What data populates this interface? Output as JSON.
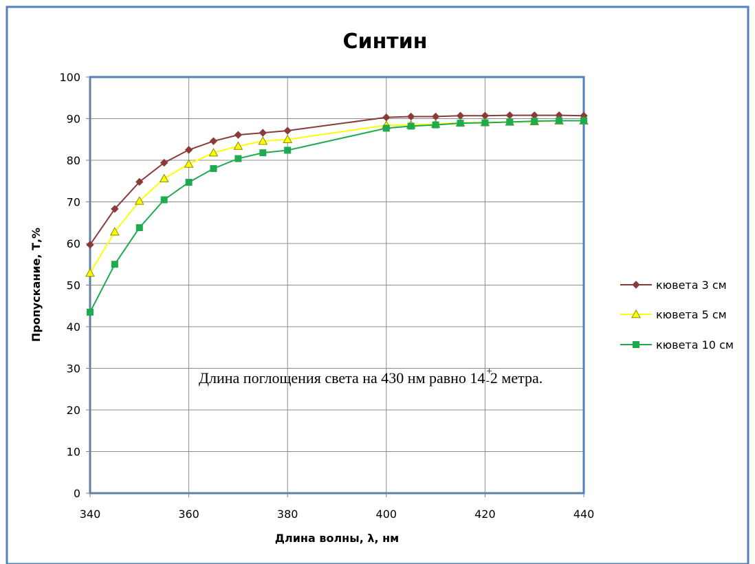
{
  "chart_data": {
    "type": "line",
    "title": "Синтин",
    "xlabel": "Длина волны, λ, нм",
    "ylabel": "Пропускание, Т,%",
    "xlim": [
      340,
      440
    ],
    "ylim": [
      0,
      100
    ],
    "x_ticks": [
      340,
      360,
      380,
      400,
      420,
      440
    ],
    "y_ticks": [
      0,
      10,
      20,
      30,
      40,
      50,
      60,
      70,
      80,
      90,
      100
    ],
    "x_grid": [
      340,
      360,
      380,
      400,
      420,
      440
    ],
    "grid": true,
    "legend_position": "right",
    "annotation": {
      "main": "Длина поглощения света на 430 нм равно 14",
      "superscript": "+",
      "subscript": "-",
      "tail": "2 метра."
    },
    "x": [
      340,
      345,
      350,
      355,
      360,
      365,
      370,
      375,
      380,
      400,
      405,
      410,
      415,
      420,
      425,
      430,
      435,
      440
    ],
    "series": [
      {
        "name": "кювета 3 см",
        "color": "#8B3A3A",
        "marker": "diamond",
        "values": [
          59.7,
          68.3,
          74.8,
          79.4,
          82.5,
          84.6,
          86.1,
          86.6,
          87.1,
          90.3,
          90.5,
          90.5,
          90.7,
          90.7,
          90.8,
          90.8,
          90.8,
          90.7
        ]
      },
      {
        "name": "кювета 5 см",
        "color": "#FFFF00",
        "marker": "triangle",
        "values": [
          52.9,
          62.8,
          70.2,
          75.6,
          79.1,
          81.8,
          83.4,
          84.6,
          85.0,
          88.4,
          88.5,
          88.7,
          89.0,
          89.1,
          89.2,
          89.3,
          89.5,
          89.5
        ]
      },
      {
        "name": "кювета 10 см",
        "color": "#1EAA4E",
        "marker": "square",
        "values": [
          43.5,
          55.0,
          63.8,
          70.5,
          74.7,
          78.0,
          80.4,
          81.8,
          82.4,
          87.7,
          88.2,
          88.5,
          88.9,
          89.0,
          89.2,
          89.4,
          89.5,
          89.5
        ]
      }
    ]
  }
}
